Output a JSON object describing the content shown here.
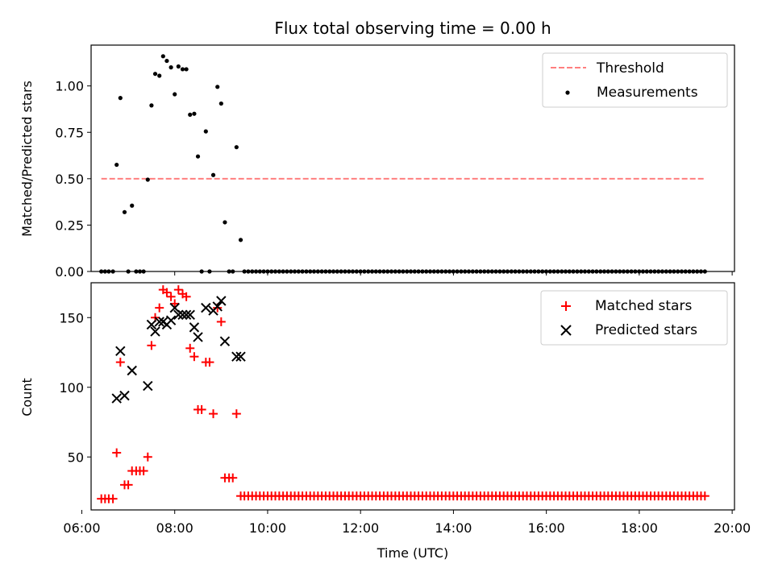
{
  "colors": {
    "threshold": "#ff7f7f",
    "measurements": "#000000",
    "matched": "#ff0000",
    "predicted": "#000000",
    "axes": "#000000"
  },
  "chart_data": [
    {
      "type": "scatter",
      "title": "Flux total observing time = 0.00 h",
      "xlabel": "",
      "ylabel": "Matched/Predicted stars",
      "xlim": [
        6.2,
        20.05
      ],
      "ylim": [
        0,
        1.22
      ],
      "yticks": [
        0.0,
        0.25,
        0.5,
        0.75,
        1.0
      ],
      "ytick_labels": [
        "0.00",
        "0.25",
        "0.50",
        "0.75",
        "1.00"
      ],
      "legend": {
        "placement": "upper right",
        "entries": [
          "Threshold",
          "Measurements"
        ]
      },
      "grid": false,
      "threshold": {
        "name": "Threshold",
        "value": 0.5,
        "x_range": [
          6.42,
          19.42
        ]
      },
      "measurements": {
        "name": "Measurements",
        "x": [
          6.42,
          6.5,
          6.58,
          6.67,
          6.75,
          6.83,
          6.92,
          7.0,
          7.08,
          7.17,
          7.25,
          7.33,
          7.42,
          7.5,
          7.58,
          7.67,
          7.75,
          7.83,
          7.92,
          8.0,
          8.08,
          8.17,
          8.25,
          8.33,
          8.42,
          8.5,
          8.58,
          8.67,
          8.75,
          8.83,
          8.92,
          9.0,
          9.08,
          9.17,
          9.25,
          9.33,
          9.42
        ],
        "y": [
          0.0,
          0.0,
          0.0,
          0.0,
          0.575,
          0.935,
          0.32,
          0.0,
          0.355,
          0.0,
          0.0,
          0.0,
          0.495,
          0.895,
          1.065,
          1.055,
          1.16,
          1.135,
          1.1,
          0.955,
          1.105,
          1.09,
          1.09,
          0.845,
          0.85,
          0.62,
          0.0,
          0.755,
          0.0,
          0.52,
          0.995,
          0.905,
          0.265,
          0.0,
          0.0,
          0.67,
          0.17
        ],
        "zero_run": {
          "from": 9.5,
          "to": 19.42,
          "step": 0.0833,
          "y": 0.0
        }
      }
    },
    {
      "type": "scatter",
      "title": "",
      "xlabel": "Time (UTC)",
      "ylabel": "Count",
      "xlim": [
        6.2,
        20.05
      ],
      "ylim": [
        12,
        175
      ],
      "xticks": [
        6,
        8,
        10,
        12,
        14,
        16,
        18,
        20
      ],
      "xtick_labels": [
        "06:00",
        "08:00",
        "10:00",
        "12:00",
        "14:00",
        "16:00",
        "18:00",
        "20:00"
      ],
      "yticks": [
        50,
        100,
        150
      ],
      "ytick_labels": [
        "50",
        "100",
        "150"
      ],
      "legend": {
        "placement": "upper right",
        "entries": [
          "Matched stars",
          "Predicted stars"
        ]
      },
      "grid": false,
      "matched": {
        "name": "Matched stars",
        "x": [
          6.42,
          6.5,
          6.58,
          6.67,
          6.75,
          6.83,
          6.92,
          7.0,
          7.08,
          7.17,
          7.25,
          7.33,
          7.42,
          7.5,
          7.58,
          7.67,
          7.75,
          7.83,
          7.92,
          8.0,
          8.08,
          8.17,
          8.25,
          8.33,
          8.42,
          8.5,
          8.58,
          8.67,
          8.75,
          8.83,
          8.92,
          9.0,
          9.08,
          9.17,
          9.25,
          9.33,
          9.42
        ],
        "y": [
          20,
          20,
          20,
          20,
          53,
          118,
          30,
          30,
          40,
          40,
          40,
          40,
          50,
          130,
          150,
          157,
          170,
          168,
          165,
          160,
          170,
          167,
          165,
          128,
          122,
          84,
          84,
          118,
          118,
          81,
          157,
          147,
          35,
          35,
          35,
          81,
          22
        ],
        "constant_run": {
          "from": 9.5,
          "to": 19.42,
          "step": 0.0833,
          "y": 22
        }
      },
      "predicted": {
        "name": "Predicted stars",
        "x": [
          6.75,
          6.83,
          6.92,
          7.08,
          7.42,
          7.5,
          7.58,
          7.67,
          7.75,
          7.83,
          7.92,
          8.0,
          8.08,
          8.17,
          8.25,
          8.33,
          8.42,
          8.5,
          8.67,
          8.83,
          8.92,
          9.0,
          9.08,
          9.33,
          9.42
        ],
        "y": [
          92,
          126,
          94,
          112,
          101,
          145,
          140,
          147,
          147,
          145,
          148,
          157,
          152,
          152,
          152,
          152,
          143,
          136,
          157,
          155,
          158,
          162,
          133,
          122,
          122
        ]
      }
    }
  ]
}
